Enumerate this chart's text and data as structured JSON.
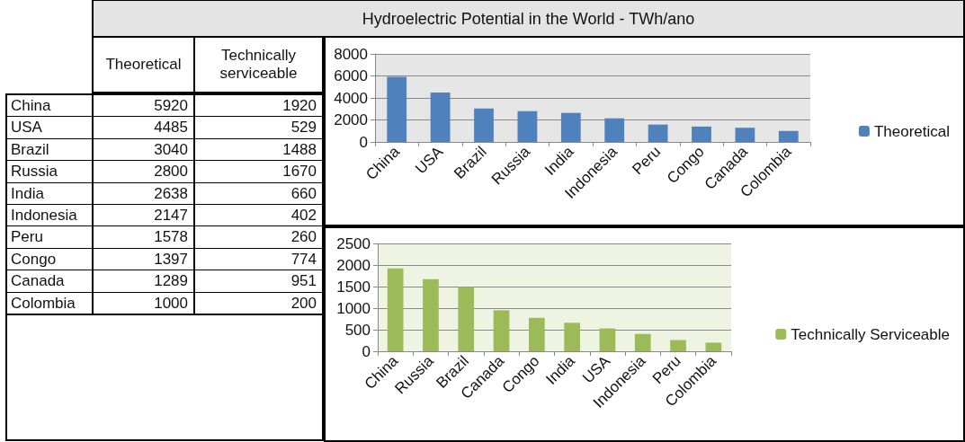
{
  "chart_data": [
    {
      "type": "other",
      "title": "Hydroelectric Potential in the World - TWh/ano",
      "categories": [
        "China",
        "USA",
        "Brazil",
        "Russia",
        "India",
        "Indonesia",
        "Peru",
        "Congo",
        "Canada",
        "Colombia"
      ],
      "data_labels": true,
      "series": [
        {
          "name": "Theoretical",
          "values": [
            5920,
            4485,
            3040,
            2800,
            2638,
            2147,
            1578,
            1397,
            1289,
            1000
          ]
        },
        {
          "name": "Technically serviceable",
          "values": [
            1920,
            529,
            1488,
            1670,
            660,
            402,
            260,
            774,
            951,
            200
          ]
        }
      ]
    },
    {
      "type": "bar",
      "categories": [
        "China",
        "USA",
        "Brazil",
        "Russia",
        "India",
        "Indonesia",
        "Peru",
        "Congo",
        "Canada",
        "Colombia"
      ],
      "ylim": [
        0,
        8000
      ],
      "yticks": [
        0,
        2000,
        4000,
        6000,
        8000
      ],
      "grid": "y",
      "legend": "right",
      "series": [
        {
          "name": "Theoretical",
          "color": "#4f81bd",
          "values": [
            5920,
            4485,
            3040,
            2800,
            2638,
            2147,
            1578,
            1397,
            1289,
            1000
          ]
        }
      ]
    },
    {
      "type": "bar",
      "categories": [
        "China",
        "Russia",
        "Brazil",
        "Canada",
        "Congo",
        "India",
        "USA",
        "Indonesia",
        "Peru",
        "Colombia"
      ],
      "ylim": [
        0,
        2500
      ],
      "yticks": [
        0,
        500,
        1000,
        1500,
        2000,
        2500
      ],
      "grid": "y",
      "legend": "right",
      "series": [
        {
          "name": "Technically Serviceable",
          "color": "#9bbb59",
          "values": [
            1920,
            1670,
            1488,
            951,
            774,
            660,
            529,
            402,
            260,
            200
          ]
        }
      ]
    }
  ]
}
